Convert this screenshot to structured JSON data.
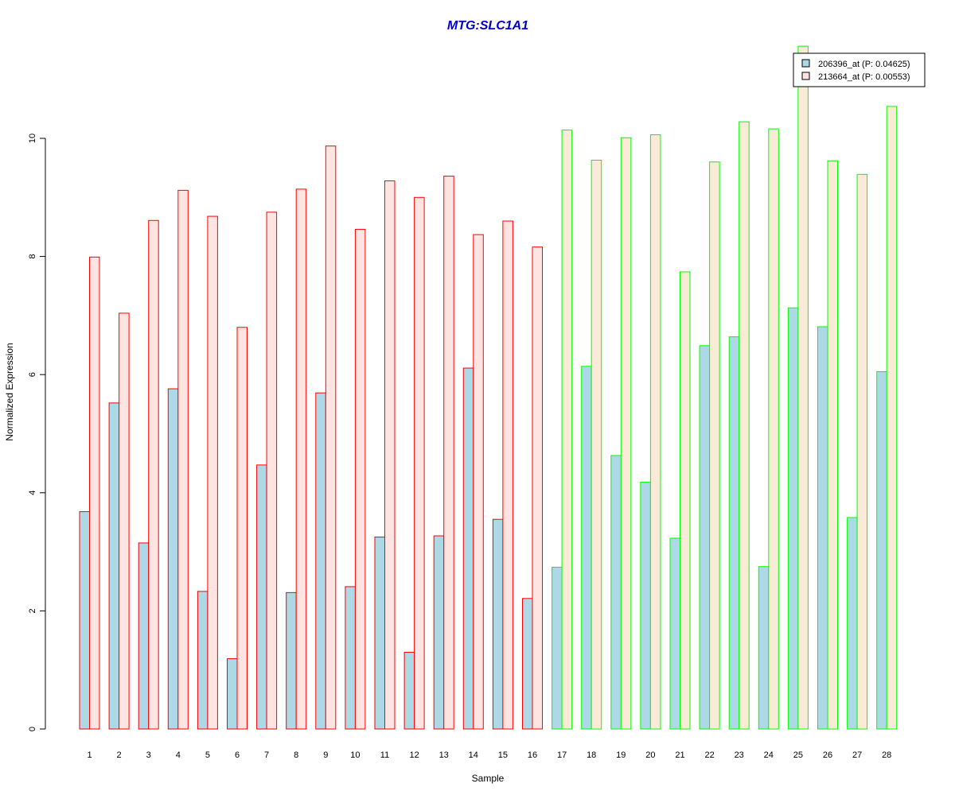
{
  "chart_data": {
    "type": "bar",
    "title": "MTG:SLC1A1",
    "xlabel": "Sample",
    "ylabel": "Normalized Expression",
    "ylim": [
      0,
      11.6
    ],
    "yticks": [
      0,
      2,
      4,
      6,
      8,
      10
    ],
    "ytick_labels": [
      "0",
      "2",
      "4",
      "6",
      "8",
      "10"
    ],
    "categories": [
      "1",
      "2",
      "3",
      "4",
      "5",
      "6",
      "7",
      "8",
      "9",
      "10",
      "11",
      "12",
      "13",
      "14",
      "15",
      "16",
      "17",
      "18",
      "19",
      "20",
      "21",
      "22",
      "23",
      "24",
      "25",
      "26",
      "27",
      "28"
    ],
    "series": [
      {
        "name": "206396_at (P: 0.04625)",
        "fill": "#add8e6",
        "values": [
          3.68,
          5.52,
          3.15,
          5.76,
          2.33,
          1.19,
          4.47,
          2.31,
          5.69,
          2.41,
          3.25,
          1.3,
          3.27,
          6.11,
          3.55,
          2.21,
          2.74,
          6.14,
          4.63,
          4.18,
          3.23,
          6.49,
          6.64,
          2.75,
          7.13,
          6.81,
          3.58,
          6.05
        ]
      },
      {
        "name": "213664_at (P: 0.00553)",
        "fill_group1": "#ffe4e1",
        "fill_group2": "#faebd7",
        "values": [
          7.99,
          7.04,
          8.61,
          9.12,
          8.68,
          6.8,
          8.75,
          9.14,
          9.87,
          8.46,
          9.28,
          9.0,
          9.36,
          8.37,
          8.6,
          8.16,
          10.14,
          9.63,
          10.01,
          10.06,
          7.74,
          9.6,
          10.28,
          10.16,
          11.56,
          9.62,
          9.39,
          10.54
        ]
      }
    ],
    "groups": [
      {
        "samples": [
          1,
          16
        ],
        "border": "#ff0000"
      },
      {
        "samples": [
          17,
          28
        ],
        "border": "#00ff00"
      }
    ],
    "title_color": "#0000cd",
    "legend_position": "top-right",
    "grid": false
  }
}
